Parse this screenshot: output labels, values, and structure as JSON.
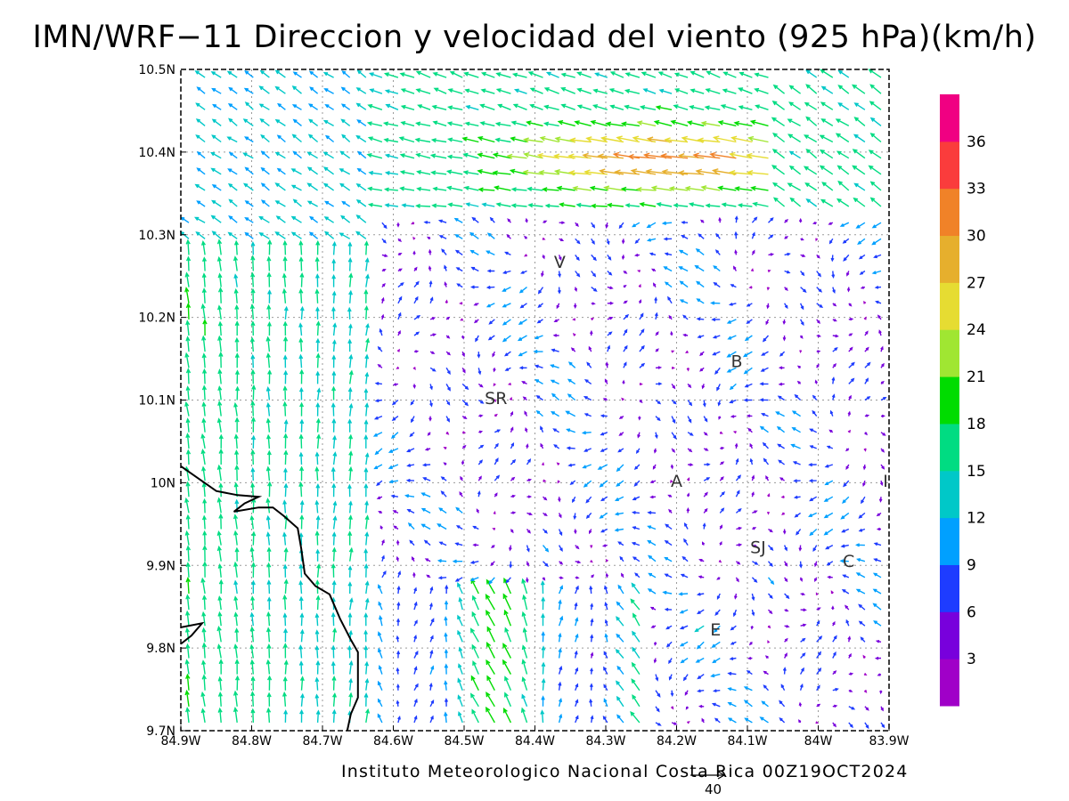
{
  "title": "IMN/WRF−11 Direccion y velocidad del viento (925 hPa)(km/h)",
  "credit": "Instituto Meteorologico Nacional Costa Rica 00Z19OCT2024",
  "scale_vector_label": "40",
  "chart_data": {
    "type": "vector-field",
    "title": "IMN/WRF−11 Direccion y velocidad del viento (925 hPa)(km/h)",
    "level": "925 hPa",
    "units": "km/h",
    "x_ticks": [
      "84.9W",
      "84.8W",
      "84.7W",
      "84.6W",
      "84.5W",
      "84.4W",
      "84.3W",
      "84.2W",
      "84.1W",
      "84W",
      "83.9W"
    ],
    "x_tick_values": [
      -84.9,
      -84.8,
      -84.7,
      -84.6,
      -84.5,
      -84.4,
      -84.3,
      -84.2,
      -84.1,
      -84.0,
      -83.9
    ],
    "y_ticks": [
      "9.7N",
      "9.8N",
      "9.9N",
      "10N",
      "10.1N",
      "10.2N",
      "10.3N",
      "10.4N",
      "10.5N"
    ],
    "y_tick_values": [
      9.7,
      9.8,
      9.9,
      10.0,
      10.1,
      10.2,
      10.3,
      10.4,
      10.5
    ],
    "xlim": [
      -84.9,
      -83.9
    ],
    "ylim": [
      9.7,
      10.5
    ],
    "grid": true,
    "colorbar": {
      "position": "right",
      "labels": [
        "3",
        "6",
        "9",
        "12",
        "15",
        "18",
        "21",
        "24",
        "27",
        "30",
        "33",
        "36"
      ],
      "bounds": [
        0,
        3,
        6,
        9,
        12,
        15,
        18,
        21,
        24,
        27,
        30,
        33,
        36,
        39
      ],
      "colors": [
        "#a000c8",
        "#7800dc",
        "#1e3cff",
        "#00a0ff",
        "#00c8c8",
        "#00dc82",
        "#00dc00",
        "#a0e632",
        "#e6dc32",
        "#e6af2d",
        "#f08228",
        "#fa3c3c",
        "#f00082"
      ]
    },
    "scale_vector": {
      "label": "40",
      "speed": 40
    },
    "city_labels": [
      {
        "text": "V",
        "lon": -84.365,
        "lat": 10.26
      },
      {
        "text": "B",
        "lon": -84.115,
        "lat": 10.14
      },
      {
        "text": "SR",
        "lon": -84.455,
        "lat": 10.095
      },
      {
        "text": "A",
        "lon": -84.2,
        "lat": 9.995
      },
      {
        "text": "I",
        "lon": -83.905,
        "lat": 9.995
      },
      {
        "text": "SJ",
        "lon": -84.085,
        "lat": 9.915
      },
      {
        "text": "C",
        "lon": -83.957,
        "lat": 9.898
      },
      {
        "text": "E",
        "lon": -84.145,
        "lat": 9.815
      }
    ],
    "coastline": [
      [
        -84.9,
        10.02
      ],
      [
        -84.85,
        9.99
      ],
      [
        -84.82,
        9.985
      ],
      [
        -84.79,
        9.983
      ],
      [
        -84.81,
        9.975
      ],
      [
        -84.825,
        9.965
      ],
      [
        -84.79,
        9.97
      ],
      [
        -84.77,
        9.97
      ],
      [
        -84.755,
        9.96
      ],
      [
        -84.735,
        9.945
      ],
      [
        -84.73,
        9.92
      ],
      [
        -84.725,
        9.89
      ],
      [
        -84.71,
        9.875
      ],
      [
        -84.69,
        9.865
      ],
      [
        -84.675,
        9.835
      ],
      [
        -84.66,
        9.81
      ],
      [
        -84.65,
        9.795
      ],
      [
        -84.65,
        9.77
      ],
      [
        -84.65,
        9.74
      ],
      [
        -84.66,
        9.72
      ],
      [
        -84.665,
        9.7
      ]
    ],
    "coastline_b": [
      [
        -84.9,
        9.805
      ],
      [
        -84.885,
        9.815
      ],
      [
        -84.87,
        9.83
      ],
      [
        -84.9,
        9.825
      ]
    ]
  }
}
